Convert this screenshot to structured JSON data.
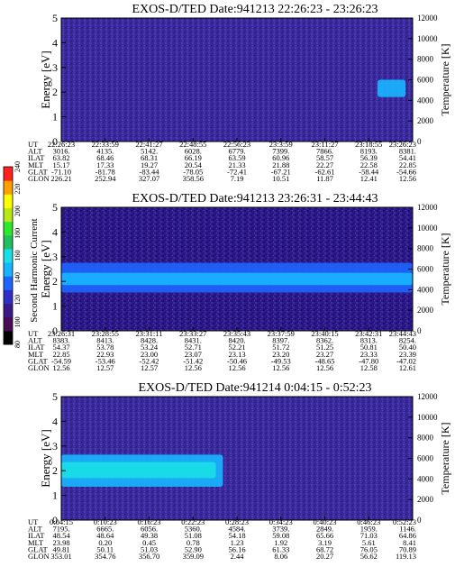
{
  "colorbar": {
    "label": "Second Harmonic Current",
    "ticks": [
      "240",
      "220",
      "200",
      "180",
      "160",
      "140",
      "120",
      "100",
      "80"
    ],
    "colors": [
      "#000000",
      "#4b0a55",
      "#3a1a8a",
      "#2e2ec8",
      "#1e64ff",
      "#19b4ff",
      "#19e0e6",
      "#20c060",
      "#2ee82e",
      "#b8e818",
      "#ffff00",
      "#ffa000",
      "#ff2020"
    ]
  },
  "chart_data": [
    {
      "type": "heatmap",
      "title": "EXOS-D/TED   Date:941213  22:26:23 - 23:26:23",
      "ylabel": "Energy [eV]",
      "ylabel_right": "Temperature [K]",
      "ylim": [
        0,
        5
      ],
      "yticks": [
        "0",
        "1",
        "2",
        "3",
        "4",
        "5"
      ],
      "ylim_right": [
        0,
        12000
      ],
      "yticks_right": [
        "0",
        "2000",
        "4000",
        "6000",
        "8000",
        "10000",
        "12000"
      ],
      "row_labels": [
        "UT",
        "ALT",
        "ILAT",
        "MLT",
        "GLAT",
        "GLON"
      ],
      "columns": [
        [
          "22:26:23",
          "3016.",
          "63.82",
          "15.17",
          "-71.10",
          "226.21"
        ],
        [
          "22:33:59",
          "4135.",
          "68.46",
          "17.33",
          "-81.78",
          "252.94"
        ],
        [
          "22:41:27",
          "5142.",
          "68.31",
          "19.27",
          "-83.44",
          "327.07"
        ],
        [
          "22:48:55",
          "6028.",
          "66.19",
          "20.54",
          "-78.05",
          "358.56"
        ],
        [
          "22:56:23",
          "6779.",
          "63.59",
          "21.33",
          "-72.41",
          "7.19"
        ],
        [
          "23:3:59",
          "7399.",
          "60.96",
          "21.88",
          "-67.21",
          "10.51"
        ],
        [
          "23:11:27",
          "7866.",
          "58.57",
          "22.27",
          "-62.61",
          "11.87"
        ],
        [
          "23:18:55",
          "8193.",
          "56.39",
          "22.58",
          "-58.44",
          "12.41"
        ],
        [
          "23:26:23",
          "8381.",
          "54.41",
          "22.85",
          "-54.66",
          "12.56"
        ]
      ],
      "features": [
        {
          "x_from": 0.9,
          "x_to": 0.98,
          "y_from": 1.8,
          "y_to": 2.5,
          "level": 150
        }
      ]
    },
    {
      "type": "heatmap",
      "title": "EXOS-D/TED   Date:941213  23:26:31 - 23:44:43",
      "ylabel": "Energy [eV]",
      "ylabel_right": "Temperature [K]",
      "ylim": [
        0,
        5
      ],
      "yticks": [
        "0",
        "1",
        "2",
        "3",
        "4",
        "5"
      ],
      "ylim_right": [
        0,
        12000
      ],
      "yticks_right": [
        "0",
        "2000",
        "4000",
        "6000",
        "8000",
        "10000",
        "12000"
      ],
      "row_labels": [
        "UT",
        "ALT",
        "ILAT",
        "MLT",
        "GLAT",
        "GLON"
      ],
      "columns": [
        [
          "23:26:31",
          "8383.",
          "54.37",
          "22.85",
          "-54.59",
          "12.56"
        ],
        [
          "23:28:55",
          "8413.",
          "53.78",
          "22.93",
          "-53.46",
          "12.57"
        ],
        [
          "23:31:11",
          "8428.",
          "53.24",
          "23.00",
          "-52.42",
          "12.57"
        ],
        [
          "23:33:27",
          "8431.",
          "52.71",
          "23.07",
          "-51.42",
          "12.56"
        ],
        [
          "23:35:43",
          "8420.",
          "52.21",
          "23.13",
          "-50.46",
          "12.56"
        ],
        [
          "23:37:59",
          "8397.",
          "51.72",
          "23.20",
          "-49.53",
          "12.56"
        ],
        [
          "23:40:15",
          "8362.",
          "51.25",
          "23.27",
          "-48.65",
          "12.56"
        ],
        [
          "23:42:31",
          "8313.",
          "50.81",
          "23.33",
          "-47.80",
          "12.58"
        ],
        [
          "23:44:43",
          "8254.",
          "50.40",
          "23.39",
          "-47.02",
          "12.61"
        ]
      ],
      "features": [
        {
          "x_from": 0.0,
          "x_to": 1.0,
          "y_from": 1.55,
          "y_to": 2.75,
          "level": 135
        },
        {
          "x_from": 0.0,
          "x_to": 1.0,
          "y_from": 1.85,
          "y_to": 2.35,
          "level": 150
        }
      ]
    },
    {
      "type": "heatmap",
      "title": "EXOS-D/TED   Date:941214  0:04:15 - 0:52:23",
      "ylabel": "Energy [eV]",
      "ylabel_right": "Temperature [K]",
      "ylim": [
        0,
        5
      ],
      "yticks": [
        "0",
        "1",
        "2",
        "3",
        "4",
        "5"
      ],
      "ylim_right": [
        0,
        12000
      ],
      "yticks_right": [
        "0",
        "2000",
        "4000",
        "6000",
        "8000",
        "10000",
        "12000"
      ],
      "row_labels": [
        "UT",
        "ALT",
        "ILAT",
        "MLT",
        "GLAT",
        "GLON"
      ],
      "columns": [
        [
          "0:04:15",
          "7195.",
          "48.54",
          "23.98",
          "49.81",
          "353.01"
        ],
        [
          "0:10:23",
          "6665.",
          "48.64",
          "0.20",
          "50.11",
          "354.76"
        ],
        [
          "0:16:23",
          "6056.",
          "49.38",
          "0.45",
          "51.03",
          "356.70"
        ],
        [
          "0:22:23",
          "5360.",
          "51.08",
          "0.78",
          "52.90",
          "359.09"
        ],
        [
          "0:28:23",
          "4584.",
          "54.18",
          "1.23",
          "56.16",
          "2.44"
        ],
        [
          "0:34:23",
          "3739.",
          "59.08",
          "1.92",
          "61.33",
          "8.06"
        ],
        [
          "0:40:23",
          "2849.",
          "65.66",
          "3.19",
          "68.72",
          "20.27"
        ],
        [
          "0:46:23",
          "1959.",
          "71.03",
          "5.61",
          "76.05",
          "56.62"
        ],
        [
          "0:52:23",
          "1146.",
          "64.86",
          "8.41",
          "70.89",
          "119.13"
        ]
      ],
      "features": [
        {
          "x_from": 0.0,
          "x_to": 0.46,
          "y_from": 1.35,
          "y_to": 2.65,
          "level": 140
        },
        {
          "x_from": 0.0,
          "x_to": 0.44,
          "y_from": 1.7,
          "y_to": 2.35,
          "level": 165
        }
      ]
    }
  ]
}
